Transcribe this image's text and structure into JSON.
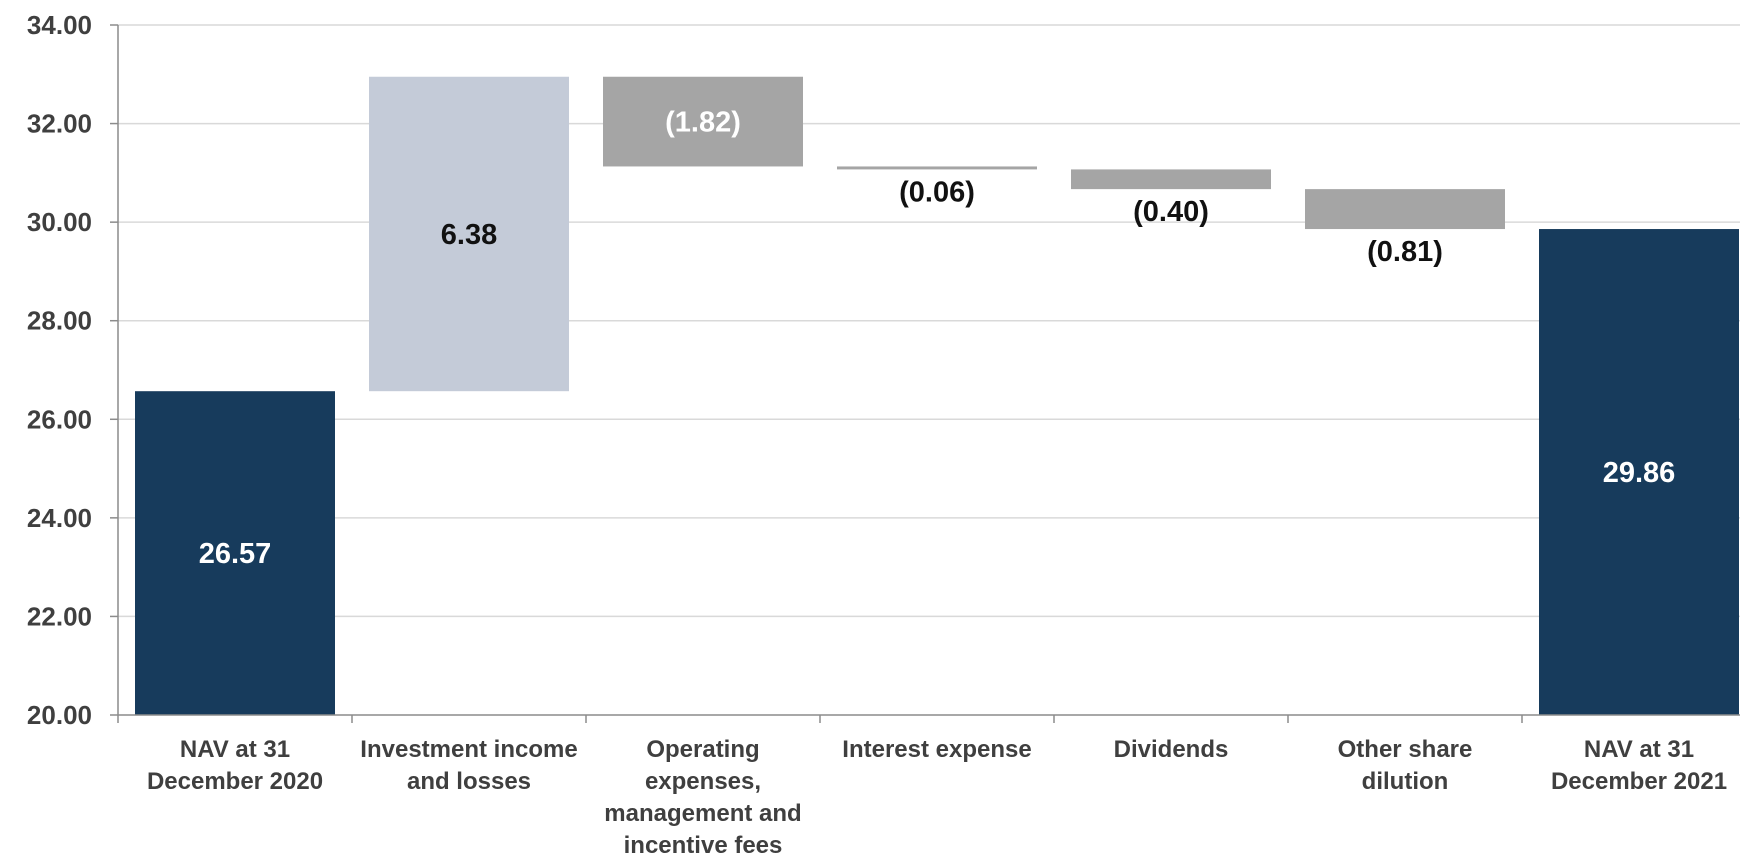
{
  "chart_data": {
    "type": "waterfall",
    "title": "",
    "xlabel": "",
    "ylabel": "",
    "ylim": [
      20,
      34
    ],
    "y_ticks": [
      "20.00",
      "22.00",
      "24.00",
      "26.00",
      "28.00",
      "30.00",
      "32.00",
      "34.00"
    ],
    "grid": true,
    "categories": [
      [
        "NAV at 31",
        "December 2020"
      ],
      [
        "Investment income",
        "and losses"
      ],
      [
        "Operating",
        "expenses,",
        "management and",
        "incentive fees"
      ],
      [
        "Interest expense"
      ],
      [
        "Dividends"
      ],
      [
        "Other share",
        "dilution"
      ],
      [
        "NAV at 31",
        "December 2021"
      ]
    ],
    "bars": [
      {
        "kind": "total",
        "start": 20.0,
        "end": 26.57,
        "label": "26.57",
        "color": "#173b5c",
        "label_color": "#ffffff",
        "label_pos": "inside"
      },
      {
        "kind": "delta",
        "start": 26.57,
        "end": 32.95,
        "label": "6.38",
        "color": "#c4cbd8",
        "label_color": "#111111",
        "label_pos": "inside"
      },
      {
        "kind": "delta",
        "start": 32.95,
        "end": 31.13,
        "label": "(1.82)",
        "color": "#a5a5a5",
        "label_color": "#ffffff",
        "label_pos": "inside"
      },
      {
        "kind": "delta",
        "start": 31.13,
        "end": 31.07,
        "label": "(0.06)",
        "color": "#a5a5a5",
        "label_color": "#111111",
        "label_pos": "below"
      },
      {
        "kind": "delta",
        "start": 31.07,
        "end": 30.67,
        "label": "(0.40)",
        "color": "#a5a5a5",
        "label_color": "#111111",
        "label_pos": "below"
      },
      {
        "kind": "delta",
        "start": 30.67,
        "end": 29.86,
        "label": "(0.81)",
        "color": "#a5a5a5",
        "label_color": "#111111",
        "label_pos": "below"
      },
      {
        "kind": "total",
        "start": 20.0,
        "end": 29.86,
        "label": "29.86",
        "color": "#173b5c",
        "label_color": "#ffffff",
        "label_pos": "inside"
      }
    ]
  }
}
